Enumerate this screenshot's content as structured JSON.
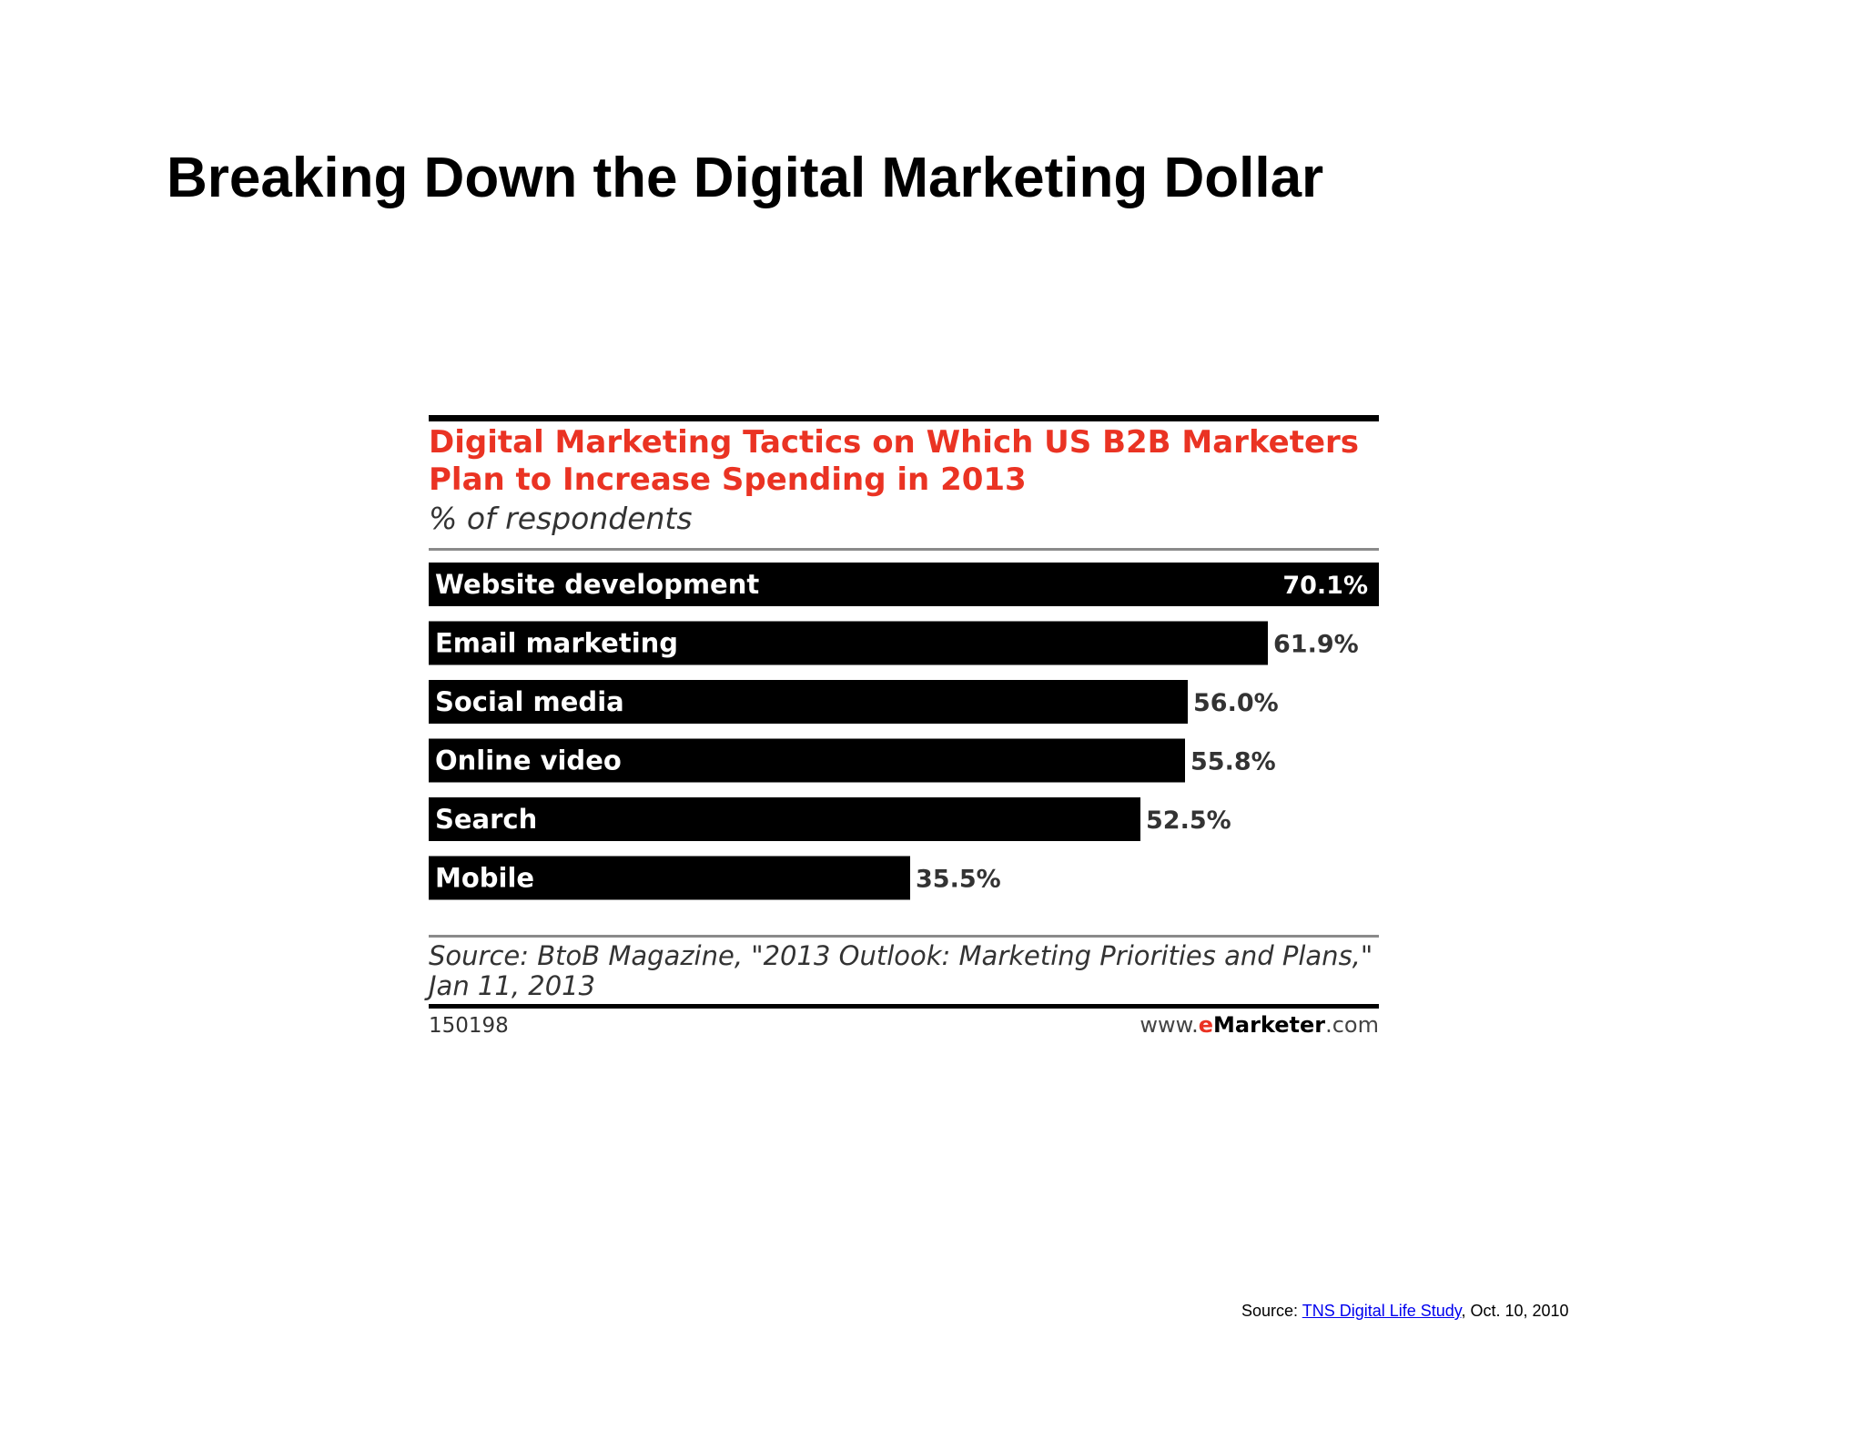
{
  "slide": {
    "title": "Breaking Down the Digital Marketing Dollar"
  },
  "chart_data": {
    "type": "bar",
    "orientation": "horizontal",
    "title": "Digital Marketing Tactics on Which US B2B Marketers Plan to Increase Spending in 2013",
    "subtitle": "% of respondents",
    "categories": [
      "Website development",
      "Email marketing",
      "Social media",
      "Online video",
      "Search",
      "Mobile"
    ],
    "values": [
      70.1,
      61.9,
      56.0,
      55.8,
      52.5,
      35.5
    ],
    "value_labels": [
      "70.1%",
      "61.9%",
      "56.0%",
      "55.8%",
      "52.5%",
      "35.5%"
    ],
    "xlim": [
      0,
      70.1
    ],
    "grid": false,
    "bar_color": "#000000",
    "category_label_color": "#ffffff",
    "title_color": "#ea3323",
    "source": "Source: BtoB Magazine, \"2013 Outlook: Marketing Priorities and Plans,\" Jan 11, 2013",
    "chart_id": "150198",
    "brand": {
      "prefix": "www.",
      "e": "e",
      "name": "Marketer",
      "suffix": ".com"
    }
  },
  "footer": {
    "prefix": "Source: ",
    "link_text": "TNS Digital Life Study",
    "suffix": ", Oct. 10, 2010",
    "link_color": "#0000ee"
  }
}
